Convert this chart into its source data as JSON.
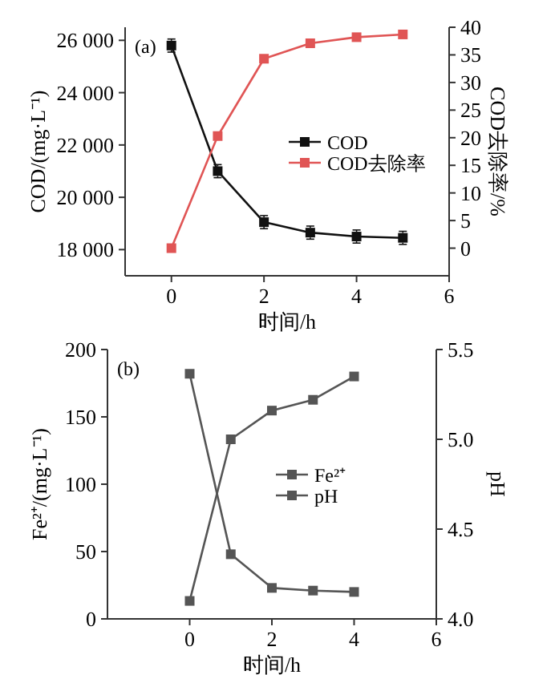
{
  "chart_data": [
    {
      "type": "line",
      "annotations": [
        "(a)"
      ],
      "xlabel": "时间/h",
      "ylabel": "COD/(mg·L⁻¹)",
      "y2label": "COD去除率/%",
      "x": [
        0,
        1,
        2,
        3,
        4,
        5
      ],
      "xlim": [
        -1,
        6
      ],
      "xticks": [
        0,
        2,
        4,
        6
      ],
      "ylim": [
        17000,
        26500
      ],
      "yticks": [
        {
          "value": 18000,
          "label": "18 000"
        },
        {
          "value": 20000,
          "label": "20 000"
        },
        {
          "value": 22000,
          "label": "22 000"
        },
        {
          "value": 24000,
          "label": "24 000"
        },
        {
          "value": 26000,
          "label": "26 000"
        }
      ],
      "y2lim": [
        -5,
        40
      ],
      "y2ticks": [
        0,
        5,
        10,
        15,
        20,
        25,
        30,
        35,
        40
      ],
      "marker": "square",
      "legend": "right",
      "series": [
        {
          "name": "COD",
          "color": "#111111",
          "values": [
            25800,
            21000,
            19050,
            18650,
            18500,
            18450
          ],
          "errors": [
            250,
            250,
            250,
            250,
            250,
            250
          ]
        },
        {
          "name": "COD去除率",
          "color": "#e05555",
          "axis": "y2",
          "values": [
            0,
            20.3,
            34.3,
            37.1,
            38.2,
            38.7
          ]
        }
      ]
    },
    {
      "type": "line",
      "annotations": [
        "(b)"
      ],
      "xlabel": "时间/h",
      "ylabel": "Fe²⁺/(mg·L⁻¹)",
      "y2label": "pH",
      "x": [
        0,
        1,
        2,
        3,
        4
      ],
      "xlim": [
        -2,
        6
      ],
      "xticks": [
        0,
        2,
        4,
        6
      ],
      "ylim": [
        0,
        200
      ],
      "yticks": [
        0,
        50,
        100,
        150,
        200
      ],
      "y2lim": [
        4.0,
        5.5
      ],
      "y2ticks": [
        {
          "value": 4.0,
          "label": "4.0"
        },
        {
          "value": 4.5,
          "label": "4.5"
        },
        {
          "value": 5.0,
          "label": "5.0"
        },
        {
          "value": 5.5,
          "label": "5.5"
        }
      ],
      "marker": "square",
      "legend": "right",
      "series": [
        {
          "name": "Fe²⁺",
          "color": "#555555",
          "values": [
            182,
            48,
            23,
            21,
            20
          ]
        },
        {
          "name": "pH",
          "color": "#555555",
          "axis": "y2",
          "values": [
            4.1,
            5.0,
            5.16,
            5.22,
            5.35
          ]
        }
      ]
    }
  ]
}
